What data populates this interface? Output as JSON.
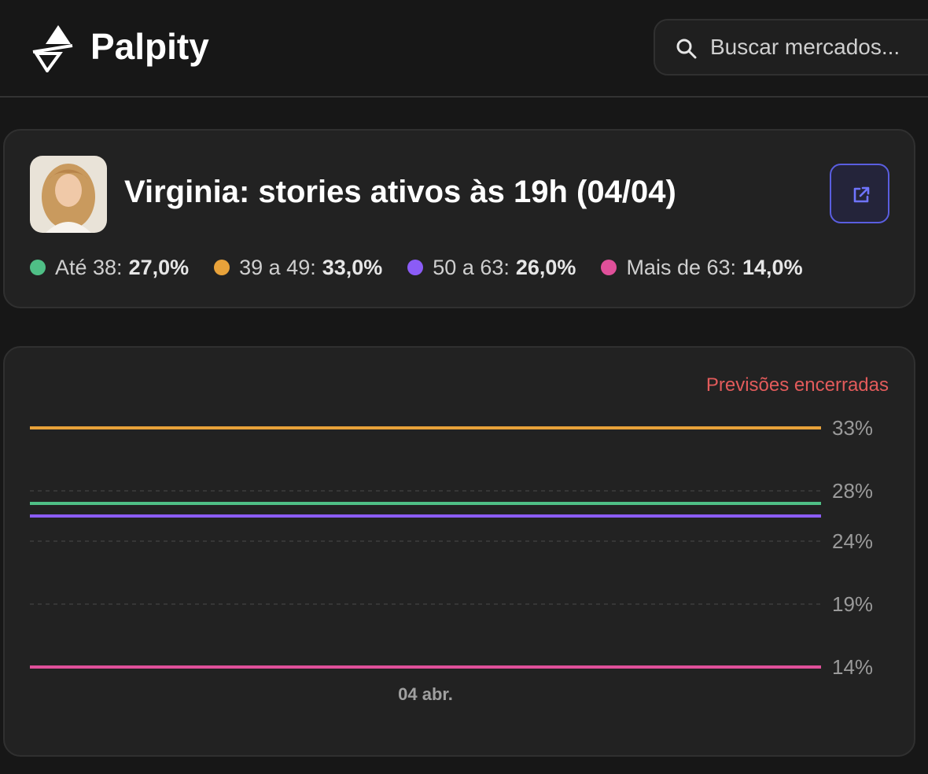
{
  "header": {
    "brand": "Palpity",
    "search_placeholder": "Buscar mercados..."
  },
  "market": {
    "title": "Virginia: stories ativos às 19h (04/04)",
    "outcomes": [
      {
        "label": "Até 38:",
        "value": "27,0%",
        "color": "#4fbf86"
      },
      {
        "label": "39 a 49:",
        "value": "33,0%",
        "color": "#e8a23a"
      },
      {
        "label": "50 a 63:",
        "value": "26,0%",
        "color": "#8b5cf6"
      },
      {
        "label": "Mais de 63:",
        "value": "14,0%",
        "color": "#e0509a"
      }
    ]
  },
  "chart_status": "Previsões encerradas",
  "chart_data": {
    "type": "line",
    "x": [
      "04 abr."
    ],
    "y_ticks": [
      "33%",
      "28%",
      "24%",
      "19%",
      "14%"
    ],
    "ylim": [
      14,
      33
    ],
    "grid": true,
    "series": [
      {
        "name": "Até 38",
        "values": [
          27
        ],
        "color": "#4fbf86"
      },
      {
        "name": "39 a 49",
        "values": [
          33
        ],
        "color": "#e8a23a"
      },
      {
        "name": "50 a 63",
        "values": [
          26
        ],
        "color": "#8b5cf6"
      },
      {
        "name": "Mais de 63",
        "values": [
          14
        ],
        "color": "#e0509a"
      }
    ]
  }
}
